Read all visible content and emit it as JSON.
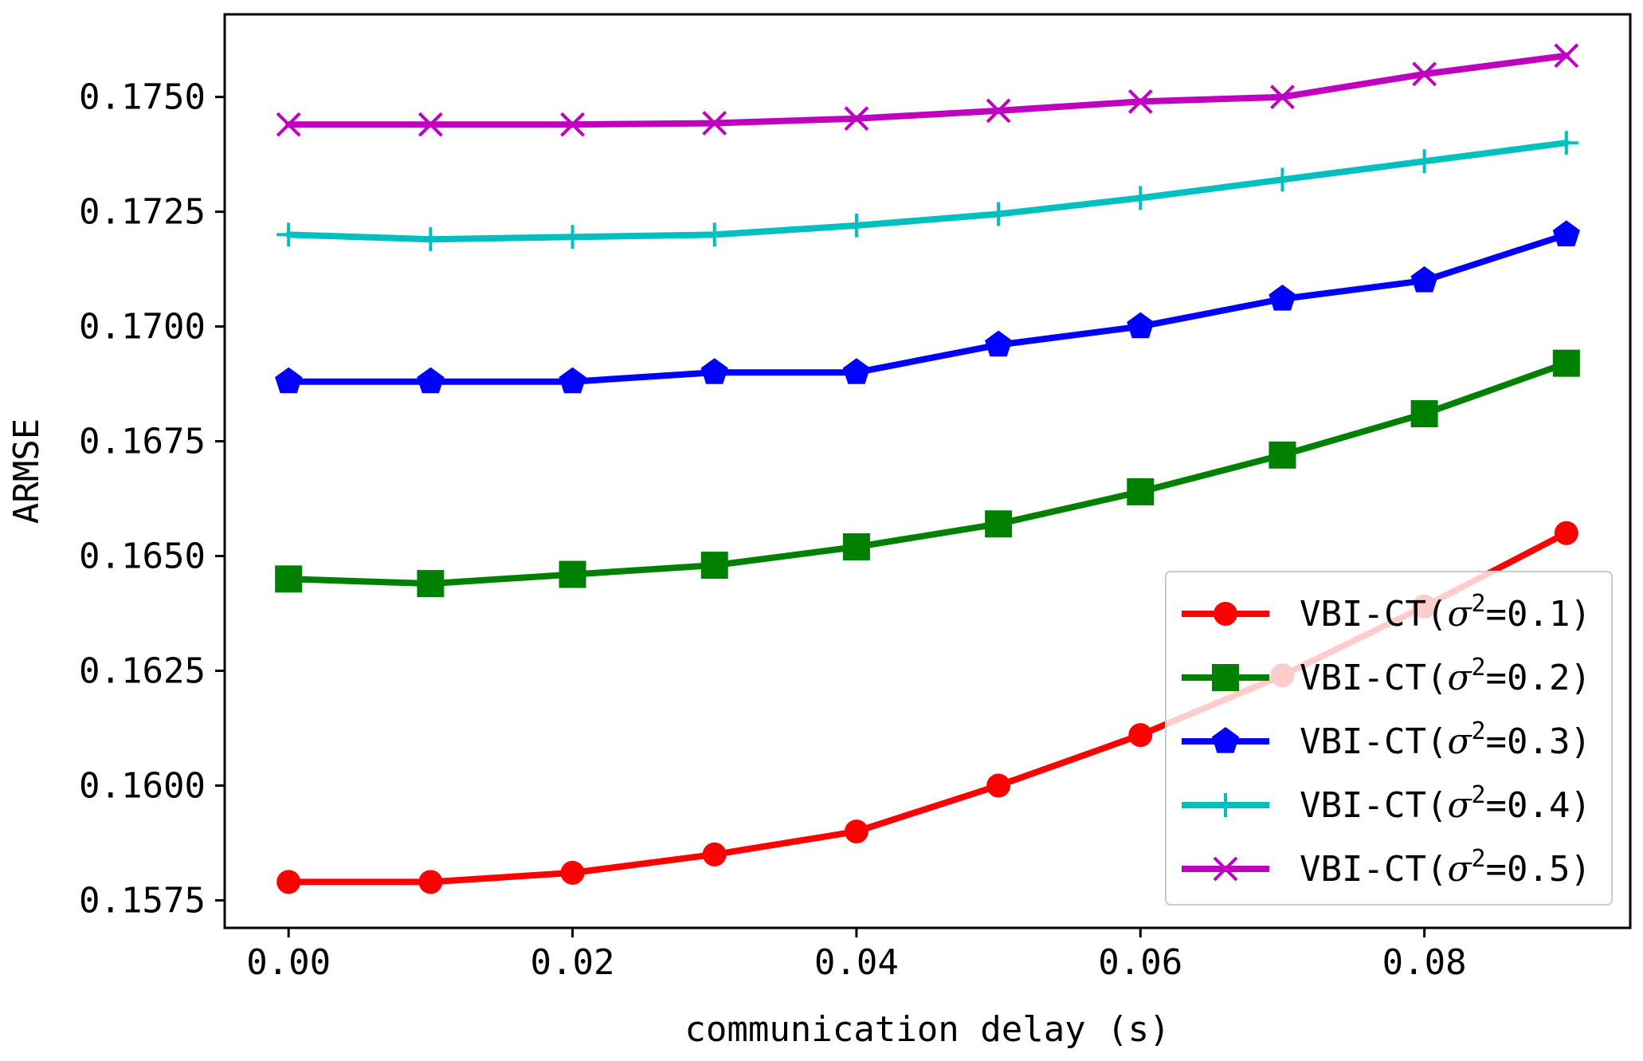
{
  "chart_data": {
    "type": "line",
    "title": "",
    "xlabel": "communication delay (s)",
    "ylabel": "ARMSE",
    "x": [
      0.0,
      0.01,
      0.02,
      0.03,
      0.04,
      0.05,
      0.06,
      0.07,
      0.08,
      0.09
    ],
    "xlim": [
      -0.0045,
      0.0945
    ],
    "ylim": [
      0.1569,
      0.1768
    ],
    "xticks": [
      0.0,
      0.02,
      0.04,
      0.06,
      0.08
    ],
    "xtick_labels": [
      "0.00",
      "0.02",
      "0.04",
      "0.06",
      "0.08"
    ],
    "yticks": [
      0.1575,
      0.16,
      0.1625,
      0.165,
      0.1675,
      0.17,
      0.1725,
      0.175
    ],
    "ytick_labels": [
      "0.1575",
      "0.1600",
      "0.1625",
      "0.1650",
      "0.1675",
      "0.1700",
      "0.1725",
      "0.1750"
    ],
    "grid": false,
    "legend_position": "lower-right",
    "series": [
      {
        "name": "VBI-CT(σ²=0.1)",
        "legend_prefix": "VBI-CT(",
        "legend_symbol": "σ",
        "legend_sup": "2",
        "legend_suffix": "=0.1)",
        "color": "#ff0000",
        "marker": "circle",
        "values": [
          0.1579,
          0.1579,
          0.1581,
          0.1585,
          0.159,
          0.16,
          0.1611,
          0.1624,
          0.1639,
          0.1655
        ]
      },
      {
        "name": "VBI-CT(σ²=0.2)",
        "legend_prefix": "VBI-CT(",
        "legend_symbol": "σ",
        "legend_sup": "2",
        "legend_suffix": "=0.2)",
        "color": "#008000",
        "marker": "square",
        "values": [
          0.1645,
          0.1644,
          0.1646,
          0.1648,
          0.1652,
          0.1657,
          0.1664,
          0.1672,
          0.1681,
          0.1692
        ]
      },
      {
        "name": "VBI-CT(σ²=0.3)",
        "legend_prefix": "VBI-CT(",
        "legend_symbol": "σ",
        "legend_sup": "2",
        "legend_suffix": "=0.3)",
        "color": "#0000ff",
        "marker": "pentagon",
        "values": [
          0.1688,
          0.1688,
          0.1688,
          0.169,
          0.169,
          0.1696,
          0.17,
          0.1706,
          0.171,
          0.172
        ]
      },
      {
        "name": "VBI-CT(σ²=0.4)",
        "legend_prefix": "VBI-CT(",
        "legend_symbol": "σ",
        "legend_sup": "2",
        "legend_suffix": "=0.4)",
        "color": "#00bfbf",
        "marker": "plus",
        "values": [
          0.172,
          0.1719,
          0.17195,
          0.172,
          0.1722,
          0.17245,
          0.1728,
          0.1732,
          0.1736,
          0.174
        ]
      },
      {
        "name": "VBI-CT(σ²=0.5)",
        "legend_prefix": "VBI-CT(",
        "legend_symbol": "σ",
        "legend_sup": "2",
        "legend_suffix": "=0.5)",
        "color": "#bf00bf",
        "marker": "x",
        "values": [
          0.1744,
          0.1744,
          0.1744,
          0.17443,
          0.17453,
          0.1747,
          0.1749,
          0.175,
          0.1755,
          0.1759
        ]
      }
    ]
  }
}
